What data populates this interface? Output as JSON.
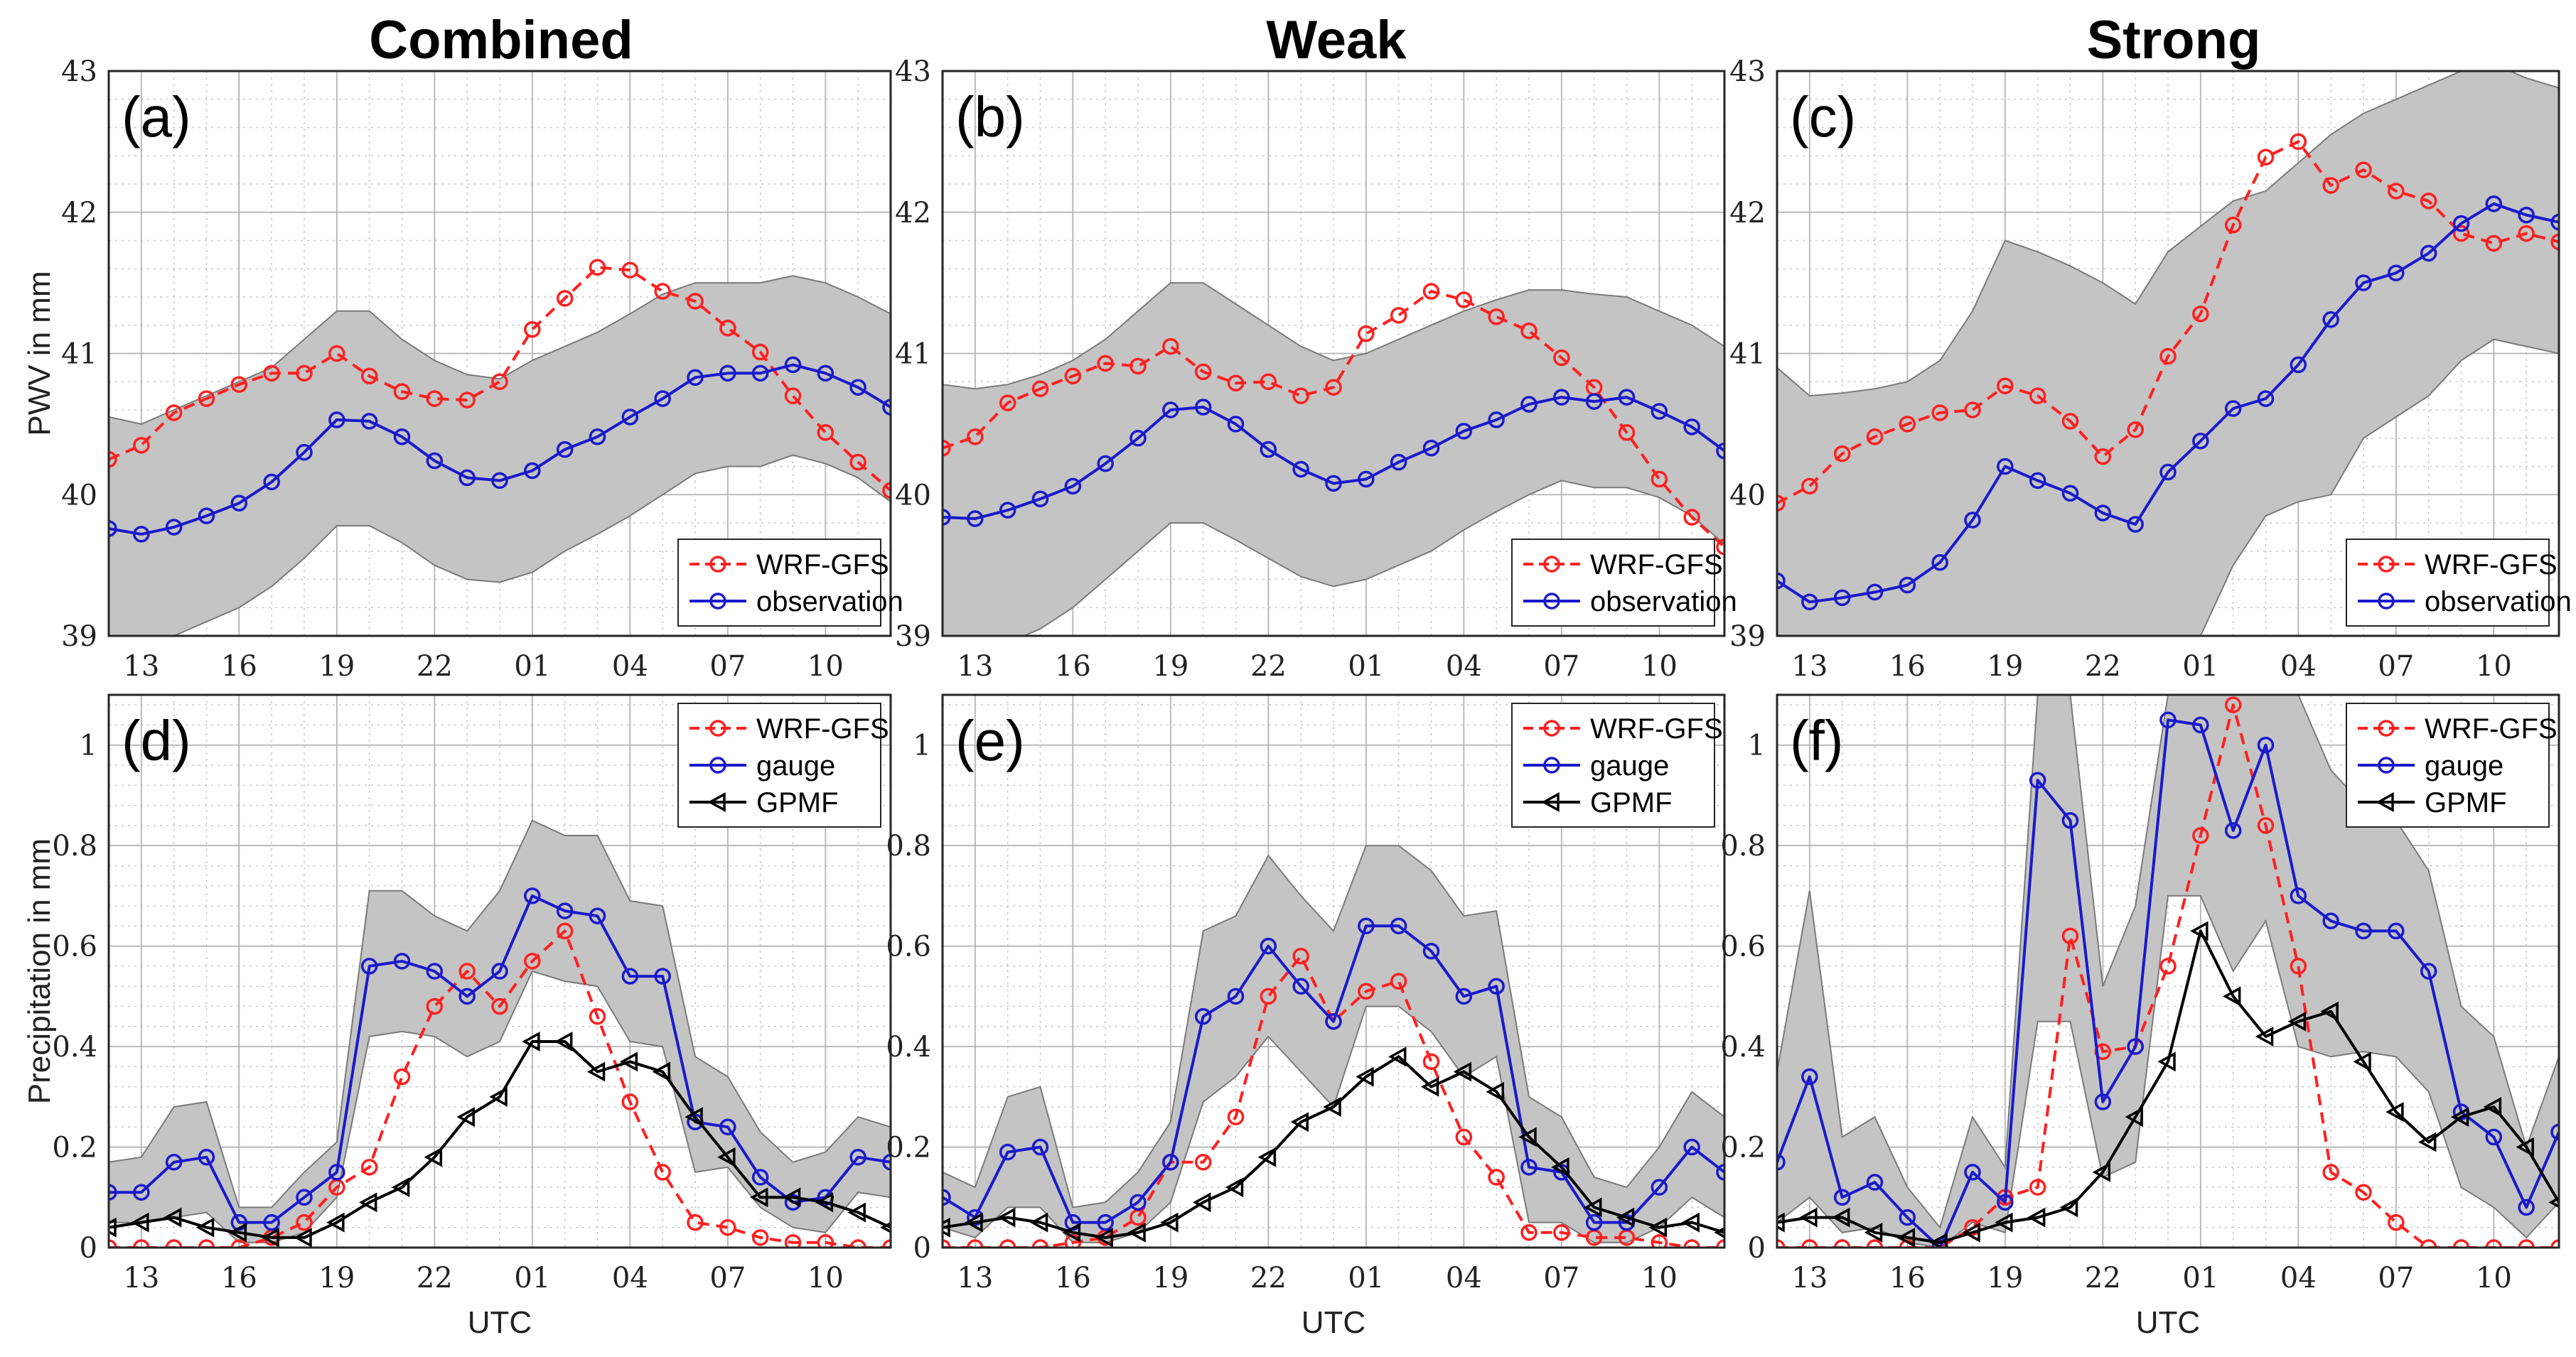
{
  "figure": {
    "columns": [
      "Combined",
      "Weak",
      "Strong"
    ],
    "x_tick_labels": [
      "13",
      "16",
      "19",
      "22",
      "01",
      "04",
      "07",
      "10"
    ],
    "x_label": "UTC"
  },
  "colors": {
    "wrf": "#ff2020",
    "observation": "#1a1acc",
    "gpmf": "#000000",
    "band": "#c4c4c4"
  },
  "chart_data": [
    {
      "type": "line",
      "panel": "(a)",
      "column": "Combined",
      "x": [
        12,
        13,
        14,
        15,
        16,
        17,
        18,
        19,
        20,
        21,
        22,
        23,
        24,
        25,
        26,
        27,
        28,
        29,
        30,
        31,
        32,
        33,
        34,
        35,
        36
      ],
      "xlim": [
        12,
        36
      ],
      "ylim": [
        39,
        43
      ],
      "yticks": [
        39,
        40,
        41,
        42,
        43
      ],
      "ylabel": "PWV in mm",
      "xlabel": "",
      "legend": "bottom-right",
      "series": [
        {
          "name": "WRF-GFS",
          "key": "wrf",
          "style": "dashed",
          "marker": "circle",
          "values": [
            40.25,
            40.35,
            40.58,
            40.68,
            40.78,
            40.86,
            40.86,
            41.0,
            40.84,
            40.73,
            40.68,
            40.67,
            40.8,
            41.17,
            41.39,
            41.61,
            41.59,
            41.44,
            41.37,
            41.18,
            41.01,
            40.7,
            40.44,
            40.23,
            40.03
          ]
        },
        {
          "name": "observation",
          "key": "observation",
          "style": "solid",
          "marker": "circle",
          "values": [
            39.76,
            39.72,
            39.77,
            39.85,
            39.94,
            40.09,
            40.3,
            40.53,
            40.52,
            40.41,
            40.24,
            40.12,
            40.1,
            40.17,
            40.32,
            40.41,
            40.55,
            40.68,
            40.83,
            40.86,
            40.86,
            40.92,
            40.86,
            40.76,
            40.62
          ]
        }
      ],
      "band": {
        "upper": [
          40.55,
          40.5,
          40.6,
          40.7,
          40.8,
          40.9,
          41.1,
          41.3,
          41.3,
          41.1,
          40.95,
          40.85,
          40.82,
          40.95,
          41.05,
          41.15,
          41.28,
          41.42,
          41.5,
          41.5,
          41.5,
          41.55,
          41.5,
          41.4,
          41.28
        ],
        "lower": [
          38.95,
          38.9,
          39.0,
          39.1,
          39.2,
          39.35,
          39.55,
          39.78,
          39.78,
          39.66,
          39.5,
          39.4,
          39.38,
          39.45,
          39.6,
          39.72,
          39.85,
          40.0,
          40.15,
          40.2,
          40.2,
          40.28,
          40.22,
          40.12,
          39.95
        ]
      }
    },
    {
      "type": "line",
      "panel": "(b)",
      "column": "Weak",
      "x": [
        12,
        13,
        14,
        15,
        16,
        17,
        18,
        19,
        20,
        21,
        22,
        23,
        24,
        25,
        26,
        27,
        28,
        29,
        30,
        31,
        32,
        33,
        34,
        35,
        36
      ],
      "xlim": [
        12,
        36
      ],
      "ylim": [
        39,
        43
      ],
      "yticks": [
        39,
        40,
        41,
        42,
        43
      ],
      "ylabel": "",
      "xlabel": "",
      "legend": "bottom-right",
      "series": [
        {
          "name": "WRF-GFS",
          "key": "wrf",
          "style": "dashed",
          "marker": "circle",
          "values": [
            40.33,
            40.41,
            40.65,
            40.75,
            40.84,
            40.93,
            40.91,
            41.05,
            40.87,
            40.79,
            40.8,
            40.7,
            40.76,
            41.14,
            41.27,
            41.44,
            41.38,
            41.26,
            41.16,
            40.97,
            40.76,
            40.44,
            40.11,
            39.84,
            39.63
          ]
        },
        {
          "name": "observation",
          "key": "observation",
          "style": "solid",
          "marker": "circle",
          "values": [
            39.84,
            39.83,
            39.89,
            39.97,
            40.06,
            40.22,
            40.4,
            40.6,
            40.62,
            40.5,
            40.32,
            40.18,
            40.08,
            40.11,
            40.23,
            40.33,
            40.45,
            40.53,
            40.64,
            40.69,
            40.66,
            40.69,
            40.59,
            40.48,
            40.31
          ]
        }
      ],
      "band": {
        "upper": [
          40.78,
          40.75,
          40.78,
          40.85,
          40.95,
          41.1,
          41.3,
          41.5,
          41.5,
          41.35,
          41.2,
          41.05,
          40.95,
          41.0,
          41.1,
          41.2,
          41.3,
          41.38,
          41.45,
          41.45,
          41.42,
          41.4,
          41.3,
          41.2,
          41.05
        ],
        "lower": [
          38.95,
          38.9,
          38.95,
          39.05,
          39.2,
          39.4,
          39.6,
          39.8,
          39.8,
          39.68,
          39.55,
          39.42,
          39.35,
          39.4,
          39.5,
          39.6,
          39.75,
          39.88,
          40.0,
          40.1,
          40.05,
          40.05,
          39.98,
          39.85,
          39.65
        ]
      }
    },
    {
      "type": "line",
      "panel": "(c)",
      "column": "Strong",
      "x": [
        12,
        13,
        14,
        15,
        16,
        17,
        18,
        19,
        20,
        21,
        22,
        23,
        24,
        25,
        26,
        27,
        28,
        29,
        30,
        31,
        32,
        33,
        34,
        35,
        36
      ],
      "xlim": [
        12,
        36
      ],
      "ylim": [
        39,
        43
      ],
      "yticks": [
        39,
        40,
        41,
        42,
        43
      ],
      "ylabel": "",
      "xlabel": "",
      "legend": "bottom-right",
      "series": [
        {
          "name": "WRF-GFS",
          "key": "wrf",
          "style": "dashed",
          "marker": "circle",
          "values": [
            39.94,
            40.06,
            40.29,
            40.41,
            40.5,
            40.58,
            40.6,
            40.77,
            40.7,
            40.52,
            40.27,
            40.46,
            40.98,
            41.28,
            41.91,
            42.39,
            42.5,
            42.19,
            42.3,
            42.15,
            42.08,
            41.85,
            41.78,
            41.85,
            41.79
          ]
        },
        {
          "name": "observation",
          "key": "observation",
          "style": "solid",
          "marker": "circle",
          "values": [
            39.39,
            39.24,
            39.27,
            39.31,
            39.36,
            39.52,
            39.82,
            40.2,
            40.1,
            40.01,
            39.87,
            39.79,
            40.16,
            40.38,
            40.61,
            40.68,
            40.92,
            41.24,
            41.5,
            41.57,
            41.71,
            41.92,
            42.06,
            41.98,
            41.93
          ]
        }
      ],
      "band": {
        "upper": [
          40.9,
          40.7,
          40.72,
          40.75,
          40.8,
          40.95,
          41.3,
          41.8,
          41.72,
          41.62,
          41.5,
          41.35,
          41.72,
          41.9,
          42.08,
          42.15,
          42.35,
          42.55,
          42.7,
          42.8,
          42.9,
          43.0,
          43.05,
          42.95,
          42.88
        ],
        "lower": [
          38.75,
          38.6,
          38.62,
          38.65,
          38.7,
          38.75,
          38.8,
          38.85,
          38.8,
          38.75,
          38.7,
          38.7,
          38.75,
          39.0,
          39.5,
          39.85,
          39.95,
          40.0,
          40.4,
          40.55,
          40.7,
          40.95,
          41.1,
          41.05,
          41.0
        ]
      }
    },
    {
      "type": "line",
      "panel": "(d)",
      "column": "Combined",
      "x": [
        12,
        13,
        14,
        15,
        16,
        17,
        18,
        19,
        20,
        21,
        22,
        23,
        24,
        25,
        26,
        27,
        28,
        29,
        30,
        31,
        32,
        33,
        34,
        35,
        36
      ],
      "xlim": [
        12,
        36
      ],
      "ylim": [
        0,
        1.1
      ],
      "yticks": [
        0,
        0.2,
        0.4,
        0.6,
        0.8,
        1
      ],
      "ylabel": "Precipitation in mm",
      "xlabel": "UTC",
      "legend": "top-right",
      "series": [
        {
          "name": "WRF-GFS",
          "key": "wrf",
          "style": "dashed",
          "marker": "circle",
          "values": [
            0.0,
            0.0,
            0.0,
            0.0,
            0.0,
            0.02,
            0.05,
            0.12,
            0.16,
            0.34,
            0.48,
            0.55,
            0.48,
            0.57,
            0.63,
            0.46,
            0.29,
            0.15,
            0.05,
            0.04,
            0.02,
            0.01,
            0.01,
            0.0,
            0.0
          ]
        },
        {
          "name": "gauge",
          "key": "observation",
          "style": "solid",
          "marker": "circle",
          "values": [
            0.11,
            0.11,
            0.17,
            0.18,
            0.05,
            0.05,
            0.1,
            0.15,
            0.56,
            0.57,
            0.55,
            0.5,
            0.55,
            0.7,
            0.67,
            0.66,
            0.54,
            0.54,
            0.25,
            0.24,
            0.14,
            0.09,
            0.1,
            0.18,
            0.17
          ]
        },
        {
          "name": "GPMF",
          "key": "gpmf",
          "style": "solid",
          "marker": "triangle-left",
          "values": [
            0.04,
            0.05,
            0.06,
            0.04,
            0.03,
            0.02,
            0.02,
            0.05,
            0.09,
            0.12,
            0.18,
            0.26,
            0.3,
            0.41,
            0.41,
            0.35,
            0.37,
            0.35,
            0.26,
            0.18,
            0.1,
            0.1,
            0.09,
            0.07,
            0.04
          ]
        }
      ],
      "band": {
        "upper": [
          0.17,
          0.18,
          0.28,
          0.29,
          0.08,
          0.08,
          0.15,
          0.21,
          0.71,
          0.71,
          0.66,
          0.63,
          0.71,
          0.85,
          0.82,
          0.82,
          0.69,
          0.68,
          0.38,
          0.34,
          0.23,
          0.17,
          0.19,
          0.26,
          0.24
        ],
        "lower": [
          0.05,
          0.05,
          0.06,
          0.07,
          0.01,
          0.01,
          0.03,
          0.1,
          0.42,
          0.43,
          0.42,
          0.38,
          0.41,
          0.55,
          0.53,
          0.52,
          0.41,
          0.4,
          0.15,
          0.16,
          0.08,
          0.04,
          0.03,
          0.11,
          0.1
        ]
      }
    },
    {
      "type": "line",
      "panel": "(e)",
      "column": "Weak",
      "x": [
        12,
        13,
        14,
        15,
        16,
        17,
        18,
        19,
        20,
        21,
        22,
        23,
        24,
        25,
        26,
        27,
        28,
        29,
        30,
        31,
        32,
        33,
        34,
        35,
        36
      ],
      "xlim": [
        12,
        36
      ],
      "ylim": [
        0,
        1.1
      ],
      "yticks": [
        0,
        0.2,
        0.4,
        0.6,
        0.8,
        1
      ],
      "ylabel": "",
      "xlabel": "UTC",
      "legend": "top-right",
      "series": [
        {
          "name": "WRF-GFS",
          "key": "wrf",
          "style": "dashed",
          "marker": "circle",
          "values": [
            0.0,
            0.0,
            0.0,
            0.0,
            0.01,
            0.02,
            0.06,
            0.17,
            0.17,
            0.26,
            0.5,
            0.58,
            0.45,
            0.51,
            0.53,
            0.37,
            0.22,
            0.14,
            0.03,
            0.03,
            0.02,
            0.02,
            0.01,
            0.0,
            0.0
          ]
        },
        {
          "name": "gauge",
          "key": "observation",
          "style": "solid",
          "marker": "circle",
          "values": [
            0.1,
            0.06,
            0.19,
            0.2,
            0.05,
            0.05,
            0.09,
            0.17,
            0.46,
            0.5,
            0.6,
            0.52,
            0.45,
            0.64,
            0.64,
            0.59,
            0.5,
            0.52,
            0.16,
            0.15,
            0.05,
            0.05,
            0.12,
            0.2,
            0.15
          ]
        },
        {
          "name": "GPMF",
          "key": "gpmf",
          "style": "solid",
          "marker": "triangle-left",
          "values": [
            0.04,
            0.05,
            0.06,
            0.05,
            0.03,
            0.02,
            0.03,
            0.05,
            0.09,
            0.12,
            0.18,
            0.25,
            0.28,
            0.34,
            0.38,
            0.32,
            0.35,
            0.31,
            0.22,
            0.16,
            0.08,
            0.06,
            0.04,
            0.05,
            0.03
          ]
        }
      ],
      "band": {
        "upper": [
          0.15,
          0.12,
          0.3,
          0.32,
          0.08,
          0.09,
          0.15,
          0.25,
          0.63,
          0.66,
          0.78,
          0.7,
          0.63,
          0.8,
          0.8,
          0.75,
          0.66,
          0.67,
          0.3,
          0.26,
          0.14,
          0.12,
          0.2,
          0.31,
          0.26
        ],
        "lower": [
          0.04,
          0.02,
          0.08,
          0.08,
          0.01,
          0.01,
          0.03,
          0.09,
          0.29,
          0.34,
          0.42,
          0.35,
          0.28,
          0.48,
          0.48,
          0.43,
          0.34,
          0.38,
          0.05,
          0.05,
          0.01,
          0.01,
          0.04,
          0.1,
          0.06
        ]
      }
    },
    {
      "type": "line",
      "panel": "(f)",
      "column": "Strong",
      "x": [
        12,
        13,
        14,
        15,
        16,
        17,
        18,
        19,
        20,
        21,
        22,
        23,
        24,
        25,
        26,
        27,
        28,
        29,
        30,
        31,
        32,
        33,
        34,
        35,
        36
      ],
      "xlim": [
        12,
        36
      ],
      "ylim": [
        0,
        1.1
      ],
      "yticks": [
        0,
        0.2,
        0.4,
        0.6,
        0.8,
        1
      ],
      "ylabel": "",
      "xlabel": "UTC",
      "legend": "top-right",
      "series": [
        {
          "name": "WRF-GFS",
          "key": "wrf",
          "style": "dashed",
          "marker": "circle",
          "values": [
            0.0,
            0.0,
            0.0,
            0.0,
            0.0,
            0.0,
            0.04,
            0.1,
            0.12,
            0.62,
            0.39,
            0.4,
            0.56,
            0.82,
            1.08,
            0.84,
            0.56,
            0.15,
            0.11,
            0.05,
            0.0,
            0.0,
            0.0,
            0.0,
            0.0
          ]
        },
        {
          "name": "gauge",
          "key": "observation",
          "style": "solid",
          "marker": "circle",
          "values": [
            0.17,
            0.34,
            0.1,
            0.13,
            0.06,
            0.0,
            0.15,
            0.09,
            0.93,
            0.85,
            0.29,
            0.4,
            1.05,
            1.04,
            0.83,
            1.0,
            0.7,
            0.65,
            0.63,
            0.63,
            0.55,
            0.27,
            0.22,
            0.08,
            0.23
          ]
        },
        {
          "name": "GPMF",
          "key": "gpmf",
          "style": "solid",
          "marker": "triangle-left",
          "values": [
            0.05,
            0.06,
            0.06,
            0.03,
            0.02,
            0.01,
            0.03,
            0.05,
            0.06,
            0.08,
            0.15,
            0.26,
            0.37,
            0.63,
            0.5,
            0.42,
            0.45,
            0.47,
            0.37,
            0.27,
            0.21,
            0.26,
            0.28,
            0.2,
            0.09
          ]
        }
      ],
      "band": {
        "upper": [
          0.35,
          0.71,
          0.22,
          0.26,
          0.12,
          0.04,
          0.26,
          0.16,
          1.1,
          1.1,
          0.52,
          0.68,
          1.1,
          1.1,
          1.1,
          1.1,
          1.1,
          0.95,
          0.88,
          0.85,
          0.75,
          0.48,
          0.42,
          0.2,
          0.38
        ],
        "lower": [
          0.05,
          0.1,
          0.03,
          0.04,
          0.01,
          0.0,
          0.05,
          0.03,
          0.45,
          0.45,
          0.14,
          0.17,
          0.7,
          0.7,
          0.55,
          0.65,
          0.4,
          0.38,
          0.39,
          0.38,
          0.31,
          0.12,
          0.08,
          0.02,
          0.09
        ]
      }
    }
  ]
}
